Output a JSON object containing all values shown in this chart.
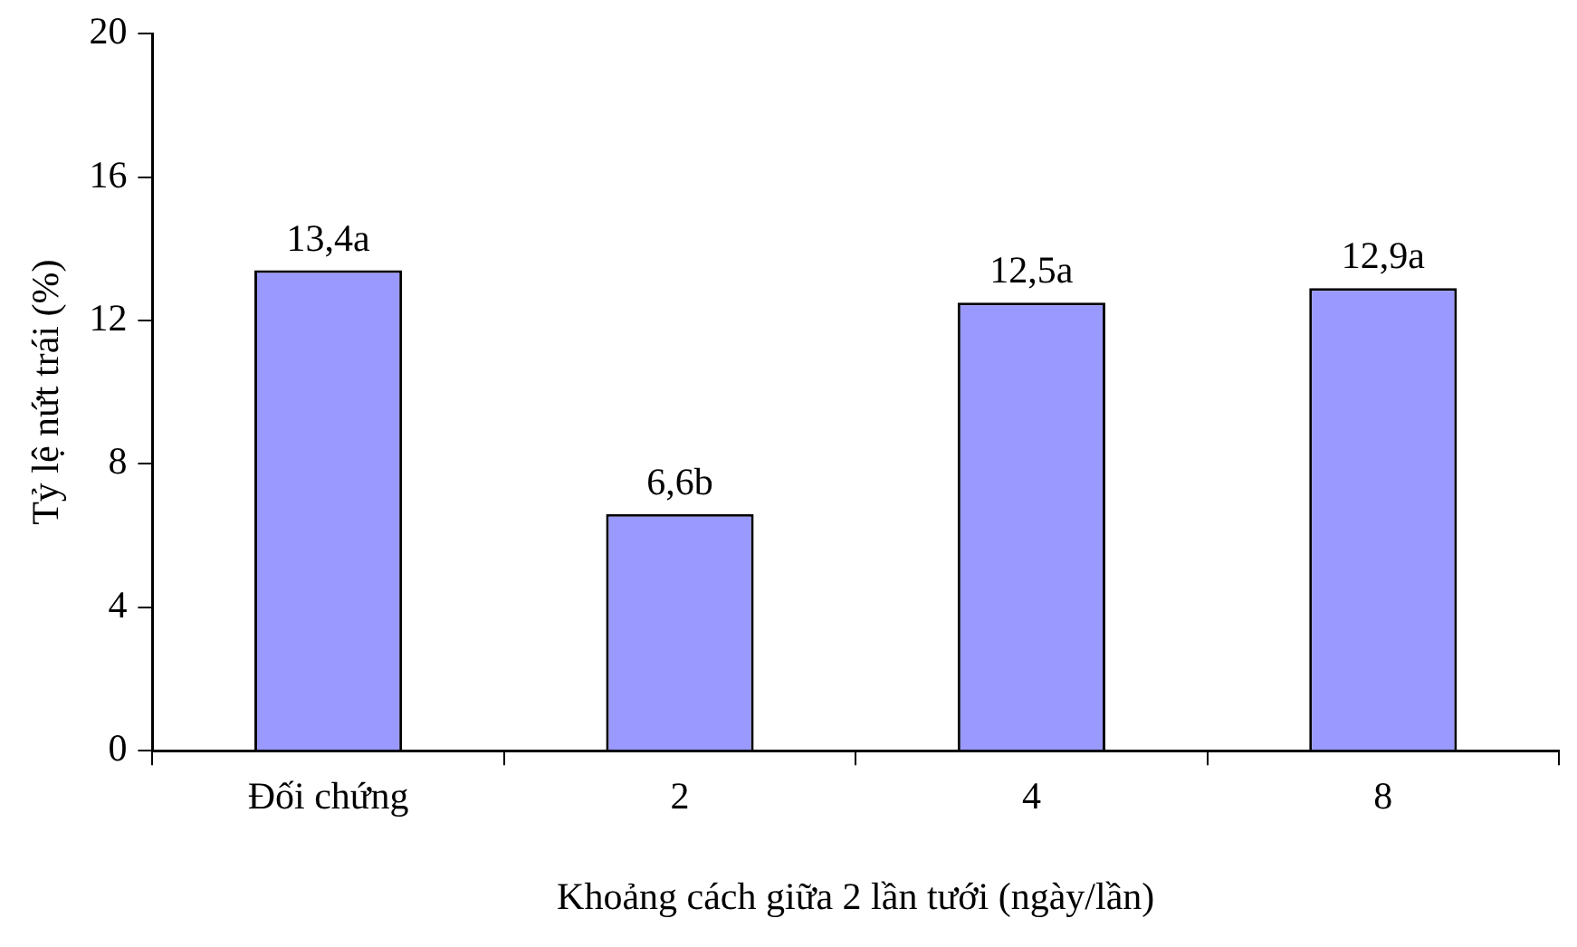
{
  "chart_data": {
    "type": "bar",
    "xlabel": "Khoảng cách giữa 2 lần tưới (ngày/lần)",
    "ylabel": "Tỷ lệ nứt trái (%)",
    "categories": [
      "Đối chứng",
      "2",
      "4",
      "8"
    ],
    "values": [
      13.4,
      6.6,
      12.5,
      12.9
    ],
    "color": "#9999ff",
    "value_labels": [
      "13,4a",
      "6,6b",
      "12,5a",
      "12,9a"
    ],
    "ylim": [
      0,
      20
    ],
    "yticks": [
      0,
      4,
      8,
      12,
      16,
      20
    ],
    "grid": false,
    "legend": false
  }
}
